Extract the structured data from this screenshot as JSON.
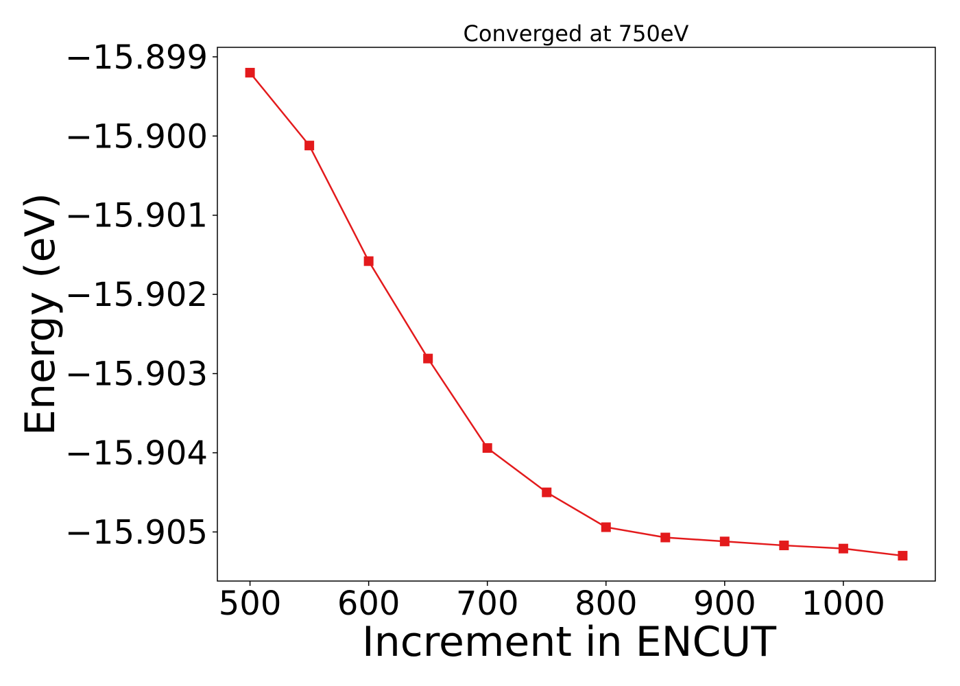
{
  "chart_data": {
    "type": "line",
    "title": "Converged at 750eV",
    "xlabel": "Increment in ENCUT",
    "ylabel": "Energy (eV)",
    "x_ticks": [
      500,
      600,
      700,
      800,
      900,
      1000
    ],
    "x_tick_labels": [
      "500",
      "600",
      "700",
      "800",
      "900",
      "1000"
    ],
    "y_ticks": [
      -15.899,
      -15.9,
      -15.901,
      -15.902,
      -15.903,
      -15.904,
      -15.905
    ],
    "y_tick_labels": [
      "−15.899",
      "−15.900",
      "−15.901",
      "−15.902",
      "−15.903",
      "−15.904",
      "−15.905"
    ],
    "xlim": [
      472.5,
      1077.5
    ],
    "ylim": [
      -15.90562,
      -15.89888
    ],
    "grid": false,
    "marker": "square",
    "color": "#e31a1c",
    "series": [
      {
        "x": [
          500,
          550,
          600,
          650,
          700,
          750,
          800,
          850,
          900,
          950,
          1000,
          1050
        ],
        "y": [
          -15.8992,
          -15.90012,
          -15.90158,
          -15.90281,
          -15.90394,
          -15.9045,
          -15.90494,
          -15.90507,
          -15.90512,
          -15.90517,
          -15.90521,
          -15.9053
        ]
      }
    ]
  }
}
